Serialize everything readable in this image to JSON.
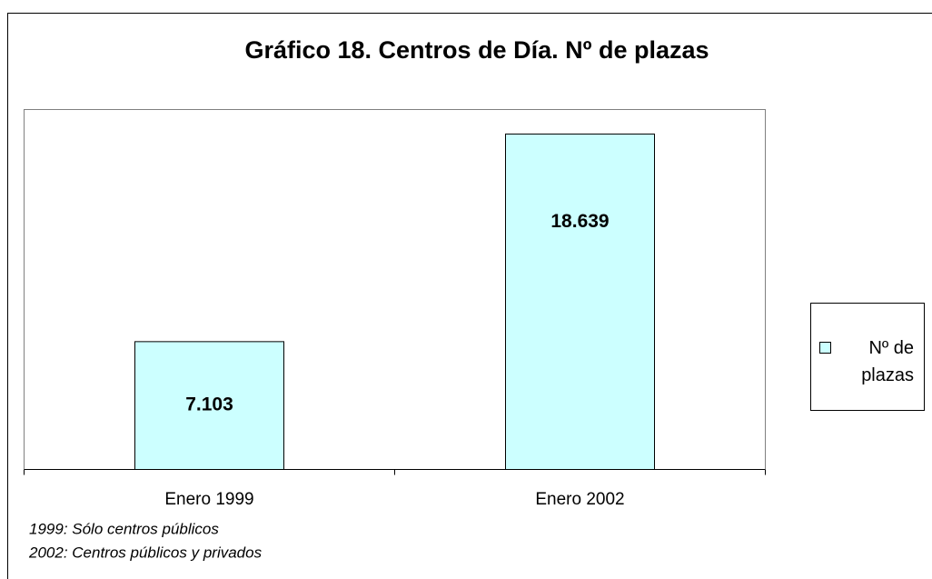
{
  "chart_data": {
    "type": "bar",
    "title": "Gráfico 18. Centros de Día. Nº de plazas",
    "categories": [
      "Enero 1999",
      "Enero 2002"
    ],
    "series": [
      {
        "name": "Nº de plazas",
        "color": "#ccffff",
        "values": [
          7103,
          18639
        ],
        "value_labels": [
          "7.103",
          "18.639"
        ]
      }
    ],
    "ylim": [
      0,
      20000
    ],
    "notes": [
      "1999: Sólo centros públicos",
      "2002: Centros públicos y privados"
    ]
  }
}
